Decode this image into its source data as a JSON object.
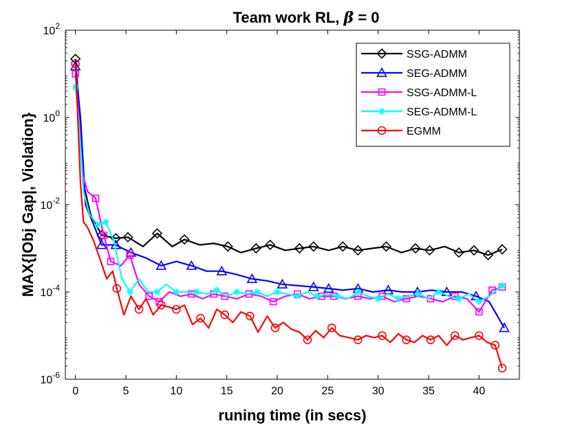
{
  "chart_data": {
    "type": "line",
    "title_prefix": "Team work RL, ",
    "title_symbol": "β",
    "title_suffix": " = 0",
    "xlabel": "runing time (in secs)",
    "ylabel": "MAX{|Obj Gap|, Violation}",
    "xlim": [
      -1,
      44
    ],
    "ylim_log10": [
      -6,
      2
    ],
    "yscale": "log",
    "x_ticks": [
      0,
      5,
      10,
      15,
      20,
      25,
      30,
      35,
      40
    ],
    "x_tick_labels": [
      "0",
      "5",
      "10",
      "15",
      "20",
      "25",
      "30",
      "35",
      "40"
    ],
    "y_ticks_exp": [
      -6,
      -4,
      -2,
      0,
      2
    ],
    "y_tick_labels": [
      {
        "base": "10",
        "exp": "-6"
      },
      {
        "base": "10",
        "exp": "-4"
      },
      {
        "base": "10",
        "exp": "-2"
      },
      {
        "base": "10",
        "exp": "0"
      },
      {
        "base": "10",
        "exp": "2"
      }
    ],
    "grid": false,
    "legend_position": "top-right",
    "series": [
      {
        "name": "SSG-ADMM",
        "color": "#000000",
        "marker": "diamond",
        "x": [
          0,
          0.4,
          0.8,
          1.5,
          2.6,
          4,
          5.2,
          6.7,
          8.1,
          9.6,
          10.8,
          12.3,
          13.7,
          15.1,
          16.4,
          17.9,
          19.3,
          20.8,
          22.2,
          23.6,
          25.1,
          26.5,
          28,
          29.4,
          30.8,
          32.3,
          33.7,
          35.1,
          36.6,
          38,
          39.5,
          40.9,
          42.3
        ],
        "y": [
          22,
          1.5,
          0.03,
          0.006,
          0.002,
          0.0017,
          0.0018,
          0.0011,
          0.0022,
          0.0011,
          0.0016,
          0.0012,
          0.0013,
          0.0011,
          0.0008,
          0.001,
          0.0012,
          0.0009,
          0.001,
          0.0011,
          0.0009,
          0.0011,
          0.0009,
          0.001,
          0.0011,
          0.0008,
          0.001,
          0.0009,
          0.0011,
          0.0008,
          0.0009,
          0.0007,
          0.00095
        ],
        "marker_indices": [
          0,
          4,
          5,
          6,
          8,
          10,
          13,
          15,
          16,
          18,
          19,
          21,
          22,
          24,
          26,
          27,
          29,
          30,
          31,
          32
        ]
      },
      {
        "name": "SEG-ADMM",
        "color": "#0000ff",
        "marker": "triangle",
        "x": [
          0,
          0.5,
          1,
          1.7,
          2.6,
          4,
          5.5,
          7,
          8.5,
          10,
          11.5,
          13,
          14.5,
          16,
          17.5,
          19,
          20.5,
          22,
          23.6,
          25.1,
          26.5,
          28,
          29.5,
          31,
          32.4,
          33.9,
          35.3,
          36.8,
          38.3,
          39.7,
          41,
          42.5
        ],
        "y": [
          15,
          1,
          0.01,
          0.004,
          0.0012,
          0.0012,
          0.0008,
          0.0006,
          0.0004,
          0.0005,
          0.0004,
          0.0003,
          0.0003,
          0.00025,
          0.0002,
          0.00018,
          0.00015,
          0.00014,
          0.00013,
          0.00012,
          0.00011,
          0.00012,
          0.0001,
          0.00011,
          0.0001,
          0.0001,
          0.00011,
          0.0001,
          0.0001,
          8e-05,
          6e-05,
          1.5e-05
        ],
        "marker_indices": [
          0,
          4,
          5,
          6,
          8,
          10,
          12,
          14,
          16,
          18,
          19,
          21,
          23,
          25,
          27,
          29,
          31
        ]
      },
      {
        "name": "SSG-ADMM-L",
        "color": "#ff00ff",
        "marker": "square",
        "x": [
          0,
          0.3,
          0.7,
          1.2,
          2,
          2.8,
          3.5,
          4.5,
          5.4,
          6.3,
          7.3,
          8.3,
          9.3,
          10.4,
          11.5,
          12.6,
          13.7,
          14.8,
          16,
          17.2,
          18.4,
          19.6,
          20.8,
          22,
          23.2,
          24.4,
          25.6,
          26.8,
          28,
          29.2,
          30.4,
          31.6,
          32.8,
          34,
          35.2,
          36.4,
          37.6,
          38.8,
          40,
          41.3,
          42.3
        ],
        "y": [
          10,
          1.3,
          0.05,
          0.02,
          0.014,
          0.002,
          0.0005,
          0.0004,
          0.0007,
          0.00015,
          8e-05,
          6e-05,
          0.0001,
          8e-05,
          9e-05,
          7e-05,
          9e-05,
          8e-05,
          7e-05,
          9e-05,
          8e-05,
          6e-05,
          8e-05,
          9e-05,
          7e-05,
          8e-05,
          8e-05,
          7e-05,
          8e-05,
          7e-05,
          8e-05,
          6e-05,
          7e-05,
          8e-05,
          7e-05,
          6e-05,
          8e-05,
          7e-05,
          3.5e-05,
          0.00011,
          0.00013
        ],
        "marker_indices": [
          0,
          4,
          5,
          6,
          8,
          10,
          11,
          14,
          16,
          17,
          19,
          21,
          23,
          25,
          26,
          28,
          30,
          32,
          34,
          36,
          38,
          39,
          40
        ]
      },
      {
        "name": "SEG-ADMM-L",
        "color": "#00ffff",
        "marker": "asterisk",
        "x": [
          0,
          0.3,
          0.8,
          1.4,
          2.2,
          3,
          3.8,
          4.6,
          5.4,
          6.3,
          7.2,
          8.1,
          9,
          10,
          11,
          12,
          13,
          14,
          15,
          16,
          17,
          18,
          19,
          20,
          21,
          22,
          23,
          24,
          25,
          26,
          27,
          28,
          29,
          30,
          31,
          32,
          33,
          34,
          35,
          36,
          37,
          38,
          39,
          40,
          41,
          42.3
        ],
        "y": [
          5,
          1,
          0.02,
          0.006,
          0.0035,
          0.004,
          0.0015,
          0.0002,
          0.0001,
          0.0002,
          0.0001,
          0.0001,
          0.00015,
          0.0001,
          0.0001,
          0.0001,
          9e-05,
          0.00011,
          8e-05,
          0.0001,
          9e-05,
          0.0001,
          8e-05,
          0.0001,
          9e-05,
          8e-05,
          0.0001,
          8e-05,
          9e-05,
          8e-05,
          7e-05,
          0.0001,
          8e-05,
          7e-05,
          9e-05,
          7e-05,
          8e-05,
          9e-05,
          7e-05,
          0.0001,
          8e-05,
          7e-05,
          9e-05,
          6e-05,
          8e-05,
          0.00014
        ],
        "marker_indices": [
          0,
          4,
          5,
          8,
          11,
          13,
          15,
          17,
          19,
          21,
          23,
          25,
          27,
          29,
          31,
          33,
          35,
          37,
          39,
          41,
          43,
          45
        ]
      },
      {
        "name": "EGMM",
        "color": "#ff0000",
        "marker": "circle",
        "x": [
          0,
          0.2,
          0.5,
          0.8,
          1.2,
          1.8,
          2.4,
          3.1,
          3.7,
          4.1,
          4.8,
          5.5,
          6.3,
          7,
          7.7,
          8.5,
          9.3,
          10,
          10.8,
          11.6,
          12.4,
          13.2,
          14,
          14.8,
          15.6,
          16.4,
          17.3,
          18.1,
          19,
          19.8,
          20.6,
          21.4,
          22.2,
          23,
          23.8,
          24.6,
          25.4,
          26.2,
          27.1,
          28,
          28.8,
          29.6,
          30.4,
          31.2,
          32,
          32.8,
          33.6,
          34.4,
          35.2,
          36,
          36.8,
          37.6,
          38.4,
          39.2,
          40,
          40.8,
          41.6,
          42.3
        ],
        "y": [
          17,
          1.5,
          0.03,
          0.004,
          0.003,
          0.0015,
          0.0006,
          0.0002,
          0.0003,
          0.00012,
          3e-05,
          8e-05,
          4e-05,
          7e-05,
          3e-05,
          5e-05,
          4.5e-05,
          4e-05,
          5e-05,
          1.8e-05,
          2.5e-05,
          1.5e-05,
          4e-05,
          3e-05,
          2e-05,
          3.5e-05,
          2.8e-05,
          1.2e-05,
          2.8e-05,
          1.5e-05,
          2e-05,
          1.4e-05,
          1.2e-05,
          8e-06,
          1.3e-05,
          9e-06,
          1.5e-05,
          1e-05,
          9e-06,
          8e-06,
          1e-05,
          9e-06,
          1e-05,
          7e-06,
          1.1e-05,
          8e-06,
          7e-06,
          1e-05,
          8e-06,
          1e-05,
          6e-06,
          1e-05,
          8e-06,
          9e-06,
          1e-05,
          7e-06,
          6e-06,
          1.8e-06
        ],
        "marker_indices": [
          0,
          9,
          12,
          15,
          17,
          20,
          23,
          26,
          29,
          33,
          36,
          39,
          42,
          45,
          48,
          51,
          54,
          56,
          57
        ]
      }
    ]
  }
}
